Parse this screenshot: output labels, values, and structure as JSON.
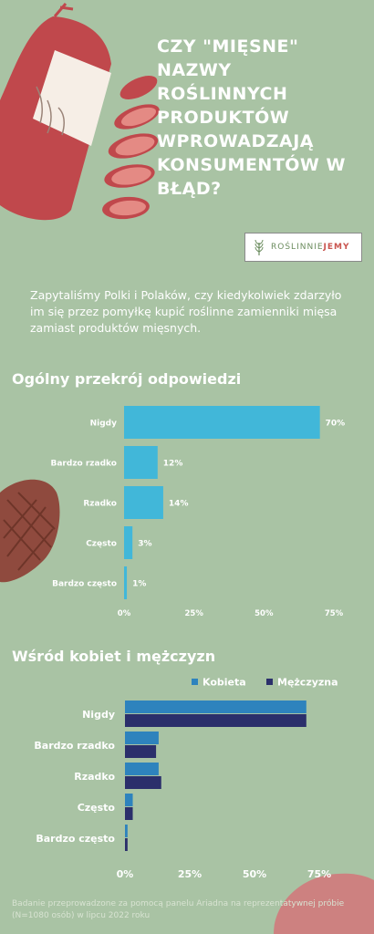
{
  "header": {
    "title": "CZY \"MIĘSNE\" NAZWY ROŚLINNYCH PRODUKTÓW WPROWADZAJĄ KONSUMENTÓW W BŁĄD?",
    "logo_part1": "ROŚLINNIE",
    "logo_part2": "JEMY"
  },
  "intro": "Zapytaliśmy Polki i Polaków, czy kiedykolwiek zdarzyło im się przez pomyłkę kupić roślinne zamienniki mięsa zamiast produktów mięsnych.",
  "section1_title": "Ogólny przekrój odpowiedzi",
  "section2_title": "Wśród kobiet i mężczyzn",
  "footnote": "Badanie przeprowadzone za pomocą panelu Ariadna na reprezentatywnej próbie (N=1080 osób) w lipcu 2022 roku",
  "colors": {
    "background": "#a9c3a4",
    "bar_overall": "#41b7d9",
    "kobieta": "#2e83bd",
    "mezczyzna": "#2b2f6b",
    "sausage": "#c0484c",
    "steak": "#8f4a3e"
  },
  "chart_data": [
    {
      "type": "bar",
      "orientation": "horizontal",
      "title": "Ogólny przekrój odpowiedzi",
      "categories": [
        "Nigdy",
        "Bardzo rzadko",
        "Rzadko",
        "Często",
        "Bardzo często"
      ],
      "values": [
        70,
        12,
        14,
        3,
        1
      ],
      "value_labels": [
        "70%",
        "12%",
        "14%",
        "3%",
        "1%"
      ],
      "x_ticks": [
        "0%",
        "25%",
        "50%",
        "75%"
      ],
      "xlim": [
        0,
        75
      ],
      "grid": false
    },
    {
      "type": "bar",
      "orientation": "horizontal",
      "title": "Wśród kobiet i mężczyzn",
      "categories": [
        "Nigdy",
        "Bardzo rzadko",
        "Rzadko",
        "Często",
        "Bardzo często"
      ],
      "series": [
        {
          "name": "Kobieta",
          "values": [
            70,
            13,
            13,
            3,
            1
          ]
        },
        {
          "name": "Mężczyzna",
          "values": [
            70,
            12,
            14,
            3,
            1
          ]
        }
      ],
      "x_ticks": [
        "0%",
        "25%",
        "50%",
        "75%"
      ],
      "xlim": [
        0,
        75
      ],
      "legend": "top",
      "grid": false
    }
  ]
}
